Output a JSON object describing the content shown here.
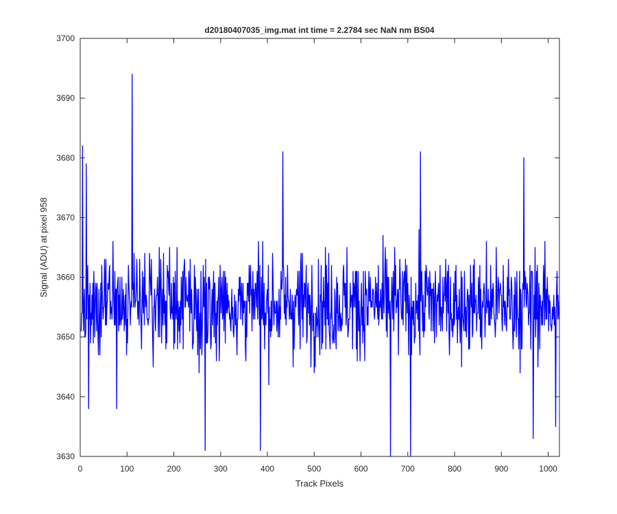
{
  "chart_data": {
    "type": "line",
    "title": "d20180407035_img.mat int time = 2.2784 sec  NaN nm BS04",
    "xlabel": "Track Pixels",
    "ylabel": "Signal (ADU) at pixel 958",
    "xlim": [
      0,
      1024
    ],
    "ylim": [
      3630,
      3700
    ],
    "xticks": [
      0,
      100,
      200,
      300,
      400,
      500,
      600,
      700,
      800,
      900,
      1000
    ],
    "yticks": [
      3630,
      3640,
      3650,
      3660,
      3670,
      3680,
      3690,
      3700
    ],
    "series_color": "#0000ff",
    "grid": false,
    "box": true,
    "series": [
      {
        "x_start": 1,
        "x_step": 1,
        "count": 1024,
        "baseline": 3655.5,
        "noise_amplitude": 5.8,
        "values_note_points": [
          [
            5,
            3682
          ],
          [
            13,
            3679
          ],
          [
            18,
            3638
          ],
          [
            111,
            3694
          ],
          [
            78,
            3638
          ],
          [
            267,
            3631
          ],
          [
            385,
            3631
          ],
          [
            433,
            3681
          ],
          [
            663,
            3630
          ],
          [
            706,
            3630
          ],
          [
            727,
            3681
          ],
          [
            948,
            3680
          ],
          [
            968,
            3633
          ],
          [
            1016,
            3635
          ]
        ]
      }
    ]
  }
}
